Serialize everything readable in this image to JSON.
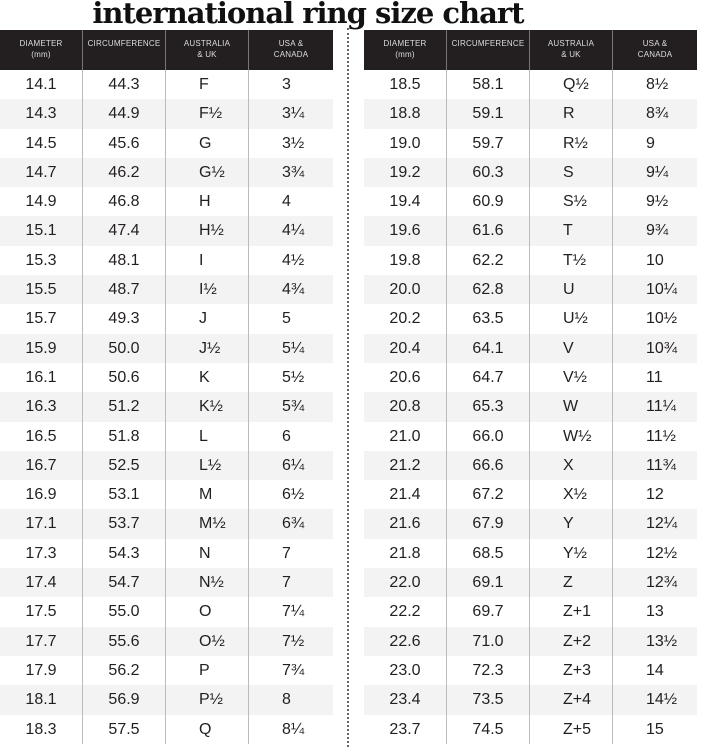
{
  "title": "international ring size chart",
  "headers": [
    [
      "DIAMETER",
      "(mm)"
    ],
    [
      "CIRCUMFERENCE",
      ""
    ],
    [
      "AUSTRALIA",
      "& UK"
    ],
    [
      "USA &",
      "CANADA"
    ]
  ],
  "left_rows": [
    [
      "14.1",
      "44.3",
      "F",
      "3"
    ],
    [
      "14.3",
      "44.9",
      "F½",
      "3¼"
    ],
    [
      "14.5",
      "45.6",
      "G",
      "3½"
    ],
    [
      "14.7",
      "46.2",
      "G½",
      "3¾"
    ],
    [
      "14.9",
      "46.8",
      "H",
      "4"
    ],
    [
      "15.1",
      "47.4",
      "H½",
      "4¼"
    ],
    [
      "15.3",
      "48.1",
      "I",
      "4½"
    ],
    [
      "15.5",
      "48.7",
      "I½",
      "4¾"
    ],
    [
      "15.7",
      "49.3",
      "J",
      "5"
    ],
    [
      "15.9",
      "50.0",
      "J½",
      "5¼"
    ],
    [
      "16.1",
      "50.6",
      "K",
      "5½"
    ],
    [
      "16.3",
      "51.2",
      "K½",
      "5¾"
    ],
    [
      "16.5",
      "51.8",
      "L",
      "6"
    ],
    [
      "16.7",
      "52.5",
      "L½",
      "6¼"
    ],
    [
      "16.9",
      "53.1",
      "M",
      "6½"
    ],
    [
      "17.1",
      "53.7",
      "M½",
      "6¾"
    ],
    [
      "17.3",
      "54.3",
      "N",
      "7"
    ],
    [
      "17.4",
      "54.7",
      "N½",
      "7"
    ],
    [
      "17.5",
      "55.0",
      "O",
      "7¼"
    ],
    [
      "17.7",
      "55.6",
      "O½",
      "7½"
    ],
    [
      "17.9",
      "56.2",
      "P",
      "7¾"
    ],
    [
      "18.1",
      "56.9",
      "P½",
      "8"
    ],
    [
      "18.3",
      "57.5",
      "Q",
      "8¼"
    ]
  ],
  "right_rows": [
    [
      "18.5",
      "58.1",
      "Q½",
      "8½"
    ],
    [
      "18.8",
      "59.1",
      "R",
      "8¾"
    ],
    [
      "19.0",
      "59.7",
      "R½",
      "9"
    ],
    [
      "19.2",
      "60.3",
      "S",
      "9¼"
    ],
    [
      "19.4",
      "60.9",
      "S½",
      "9½"
    ],
    [
      "19.6",
      "61.6",
      "T",
      "9¾"
    ],
    [
      "19.8",
      "62.2",
      "T½",
      "10"
    ],
    [
      "20.0",
      "62.8",
      "U",
      "10¼"
    ],
    [
      "20.2",
      "63.5",
      "U½",
      "10½"
    ],
    [
      "20.4",
      "64.1",
      "V",
      "10¾"
    ],
    [
      "20.6",
      "64.7",
      "V½",
      "11"
    ],
    [
      "20.8",
      "65.3",
      "W",
      "11¼"
    ],
    [
      "21.0",
      "66.0",
      "W½",
      "11½"
    ],
    [
      "21.2",
      "66.6",
      "X",
      "11¾"
    ],
    [
      "21.4",
      "67.2",
      "X½",
      "12"
    ],
    [
      "21.6",
      "67.9",
      "Y",
      "12¼"
    ],
    [
      "21.8",
      "68.5",
      "Y½",
      "12½"
    ],
    [
      "22.0",
      "69.1",
      "Z",
      "12¾"
    ],
    [
      "22.2",
      "69.7",
      "Z+1",
      "13"
    ],
    [
      "22.6",
      "71.0",
      "Z+2",
      "13½"
    ],
    [
      "23.0",
      "72.3",
      "Z+3",
      "14"
    ],
    [
      "23.4",
      "73.5",
      "Z+4",
      "14½"
    ],
    [
      "23.7",
      "74.5",
      "Z+5",
      "15"
    ]
  ],
  "colors": {
    "header_bg": "#231f20",
    "stripe": "#f3f3f3"
  }
}
